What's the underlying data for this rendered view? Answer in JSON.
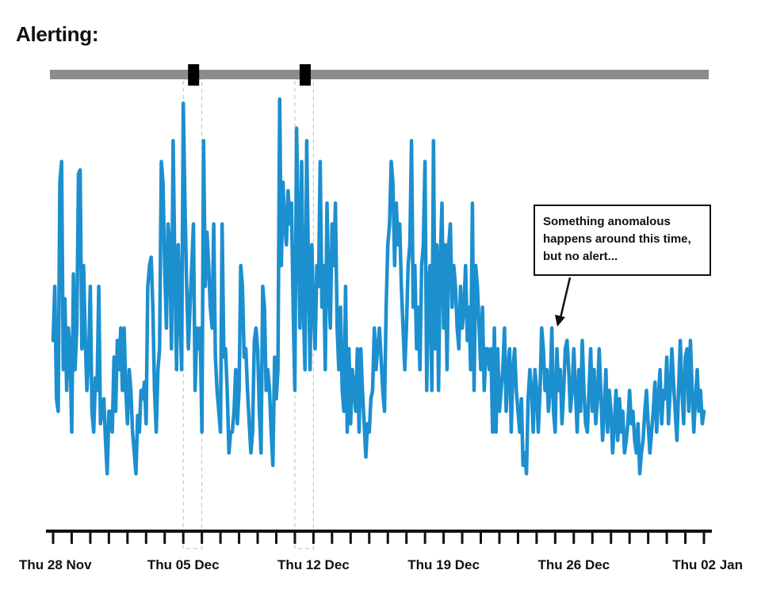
{
  "title": "Alerting:",
  "annotation": {
    "lines": [
      "Something anomalous",
      "happens around this time,",
      "but no alert..."
    ]
  },
  "colors": {
    "series": "#1c8fcf",
    "alert_bar": "#8c8c8c",
    "alert_marker": "#000000",
    "axis": "#111111"
  },
  "chart_data": {
    "type": "line",
    "title": "",
    "xlabel": "",
    "ylabel": "",
    "x_range": [
      "2019-11-28",
      "2020-01-02"
    ],
    "y_range": [
      0,
      100
    ],
    "x_tick_labels": [
      {
        "date": "2019-11-28",
        "label": "Thu 28 Nov"
      },
      {
        "date": "2019-12-05",
        "label": "Thu 05 Dec"
      },
      {
        "date": "2019-12-12",
        "label": "Thu 12 Dec"
      },
      {
        "date": "2019-12-19",
        "label": "Thu 19 Dec"
      },
      {
        "date": "2019-12-26",
        "label": "Thu 26 Dec"
      },
      {
        "date": "2020-01-02",
        "label": "Thu 02 Jan"
      }
    ],
    "minor_ticks_per_day": 1,
    "grid": false,
    "alerts": [
      {
        "start": "2019-12-05",
        "end": "2019-12-06"
      },
      {
        "start": "2019-12-11",
        "end": "2019-12-12"
      }
    ],
    "series": [
      {
        "values": [
          42,
          55,
          28,
          25,
          80,
          85,
          35,
          52,
          30,
          45,
          40,
          20,
          58,
          35,
          45,
          82,
          83,
          40,
          60,
          43,
          30,
          38,
          55,
          25,
          20,
          33,
          30,
          55,
          22,
          25,
          28,
          18,
          10,
          25,
          25,
          20,
          38,
          25,
          42,
          35,
          45,
          30,
          45,
          30,
          22,
          35,
          30,
          20,
          15,
          10,
          24,
          20,
          30,
          28,
          32,
          22,
          55,
          60,
          62,
          50,
          30,
          20,
          35,
          40,
          85,
          80,
          60,
          45,
          70,
          65,
          40,
          90,
          60,
          35,
          65,
          50,
          35,
          99,
          75,
          55,
          40,
          50,
          60,
          70,
          30,
          45,
          40,
          45,
          20,
          90,
          55,
          68,
          60,
          50,
          45,
          70,
          38,
          30,
          25,
          20,
          70,
          38,
          40,
          30,
          15,
          20,
          20,
          25,
          35,
          22,
          30,
          60,
          55,
          38,
          40,
          30,
          22,
          15,
          20,
          42,
          45,
          40,
          25,
          15,
          55,
          50,
          30,
          35,
          30,
          20,
          12,
          38,
          28,
          35,
          100,
          60,
          80,
          70,
          65,
          78,
          70,
          75,
          50,
          30,
          93,
          70,
          45,
          85,
          50,
          35,
          90,
          60,
          35,
          65,
          50,
          40,
          60,
          55,
          85,
          50,
          60,
          35,
          75,
          55,
          45,
          70,
          60,
          75,
          45,
          35,
          50,
          30,
          25,
          55,
          20,
          40,
          22,
          35,
          30,
          25,
          40,
          20,
          40,
          30,
          22,
          14,
          22,
          20,
          28,
          30,
          45,
          35,
          40,
          45,
          38,
          30,
          25,
          50,
          65,
          70,
          85,
          80,
          60,
          75,
          65,
          70,
          55,
          45,
          35,
          45,
          60,
          65,
          90,
          50,
          60,
          40,
          50,
          35,
          60,
          65,
          85,
          30,
          55,
          60,
          30,
          90,
          40,
          65,
          30,
          60,
          75,
          45,
          65,
          35,
          65,
          70,
          50,
          60,
          55,
          45,
          40,
          55,
          45,
          50,
          60,
          42,
          50,
          35,
          75,
          30,
          60,
          55,
          45,
          35,
          50,
          30,
          40,
          40,
          35,
          40,
          20,
          45,
          20,
          40,
          25,
          30,
          35,
          45,
          25,
          35,
          40,
          20,
          35,
          40,
          30,
          25,
          20,
          28,
          12,
          15,
          10,
          28,
          35,
          30,
          20,
          35,
          30,
          20,
          30,
          45,
          40,
          30,
          35,
          25,
          30,
          45,
          25,
          20,
          40,
          30,
          35,
          22,
          30,
          40,
          42,
          35,
          25,
          30,
          40,
          30,
          20,
          35,
          25,
          42,
          30,
          22,
          20,
          30,
          40,
          25,
          35,
          22,
          28,
          40,
          30,
          18,
          25,
          35,
          20,
          30,
          25,
          15,
          22,
          30,
          18,
          28,
          20,
          25,
          15,
          18,
          22,
          30,
          22,
          25,
          18,
          15,
          22,
          10,
          15,
          18,
          25,
          30,
          22,
          15,
          20,
          25,
          32,
          20,
          28,
          35,
          22,
          30,
          28,
          38,
          22,
          30,
          40,
          32,
          25,
          18,
          30,
          42,
          30,
          22,
          38,
          40,
          25,
          42,
          30,
          20,
          28,
          35,
          25,
          30,
          22,
          25
        ]
      }
    ]
  }
}
